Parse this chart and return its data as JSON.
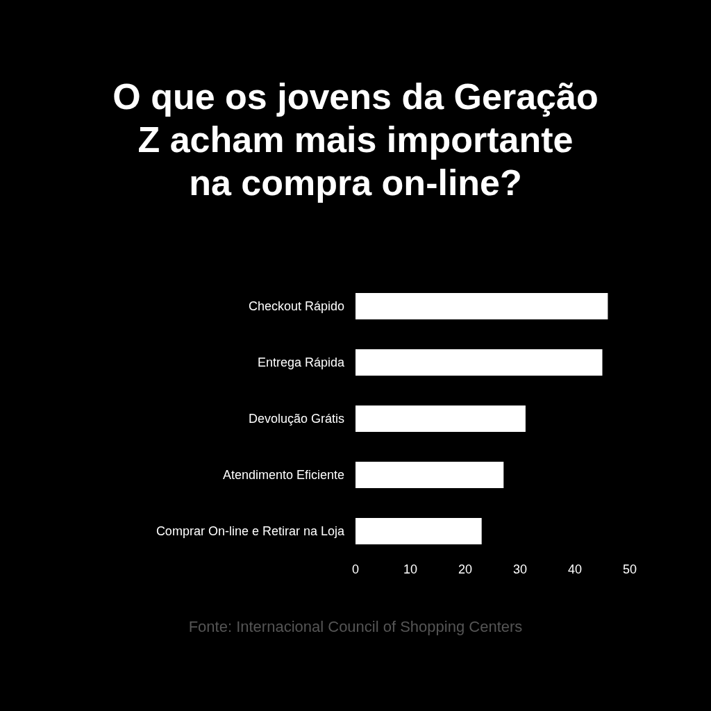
{
  "chart_data": {
    "type": "bar",
    "orientation": "horizontal",
    "title": "O que os jovens da Geração Z acham mais importante na compra on-line?",
    "categories": [
      "Checkout Rápido",
      "Entrega Rápida",
      "Devolução Grátis",
      "Atendimento Eficiente",
      "Comprar On-line e Retirar na Loja"
    ],
    "values": [
      46,
      45,
      31,
      27,
      23
    ],
    "color": "#ffffff",
    "xlim": [
      0,
      50
    ],
    "xticks": [
      0,
      10,
      20,
      30,
      40,
      50
    ],
    "grid": false,
    "annotations": [
      "Fonte: Internacional Council of Shopping Centers"
    ]
  }
}
